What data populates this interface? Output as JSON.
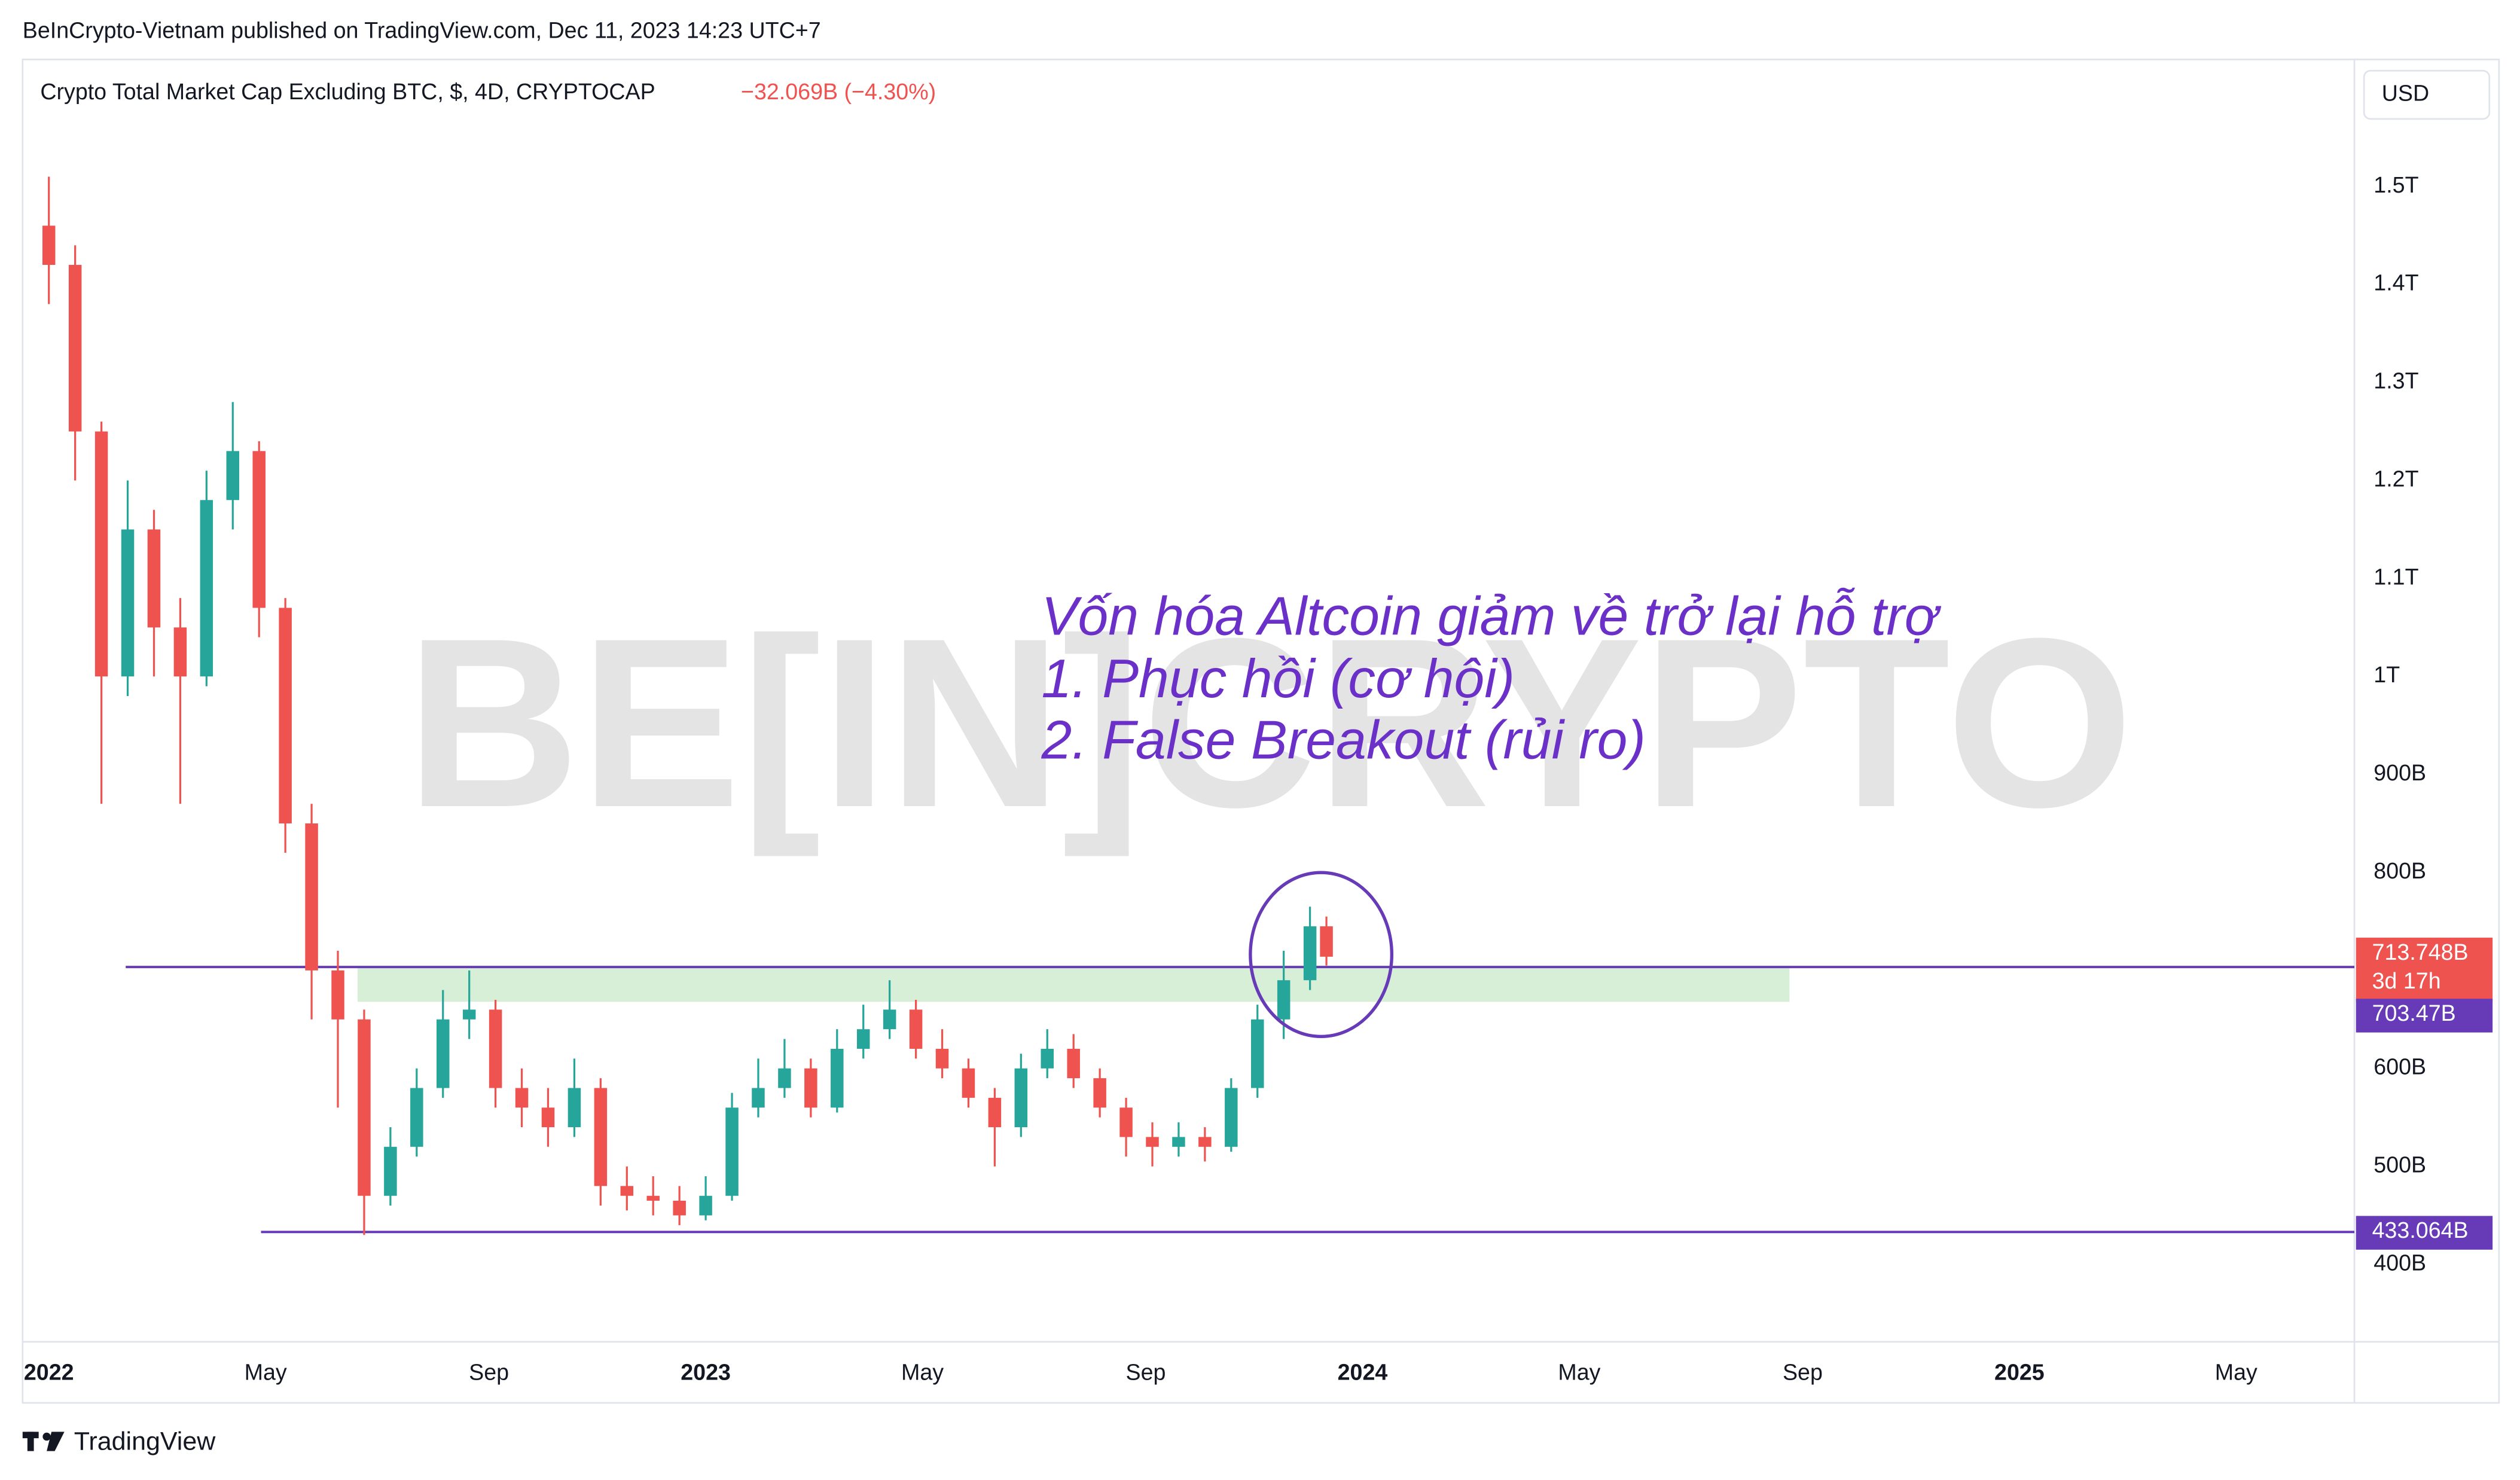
{
  "header": {
    "publisher": "BeInCrypto-Vietnam published on TradingView.com, Dec 11, 2023 14:23 UTC+7",
    "brand": "TradingView"
  },
  "chart_data": {
    "type": "candlestick",
    "title": "Crypto Total Market Cap Excluding BTC, $, 4D, CRYPTOCAP",
    "change": "−32.069B (−4.30%)",
    "currency": "USD",
    "watermark": "BE[IN]CRYPTO",
    "annotation": [
      "Vốn hóa Altcoin giảm về trở lại hỗ trợ",
      "1. Phục hồi (cơ hội)",
      "2. False Breakout (rủi ro)"
    ],
    "up_color": "#26a69a",
    "down_color": "#ef5350",
    "line_color": "#673ab7",
    "xlim": [
      2021.96,
      2025.51
    ],
    "xticks": [
      {
        "value": 2022,
        "label": "2022"
      },
      {
        "value": 2022.33,
        "label": "May"
      },
      {
        "value": 2022.67,
        "label": "Sep"
      },
      {
        "value": 2023,
        "label": "2023"
      },
      {
        "value": 2023.33,
        "label": "May"
      },
      {
        "value": 2023.67,
        "label": "Sep"
      },
      {
        "value": 2024,
        "label": "2024"
      },
      {
        "value": 2024.33,
        "label": "May"
      },
      {
        "value": 2024.67,
        "label": "Sep"
      },
      {
        "value": 2025,
        "label": "2025"
      },
      {
        "value": 2025.33,
        "label": "May"
      }
    ],
    "ylim": [
      321,
      1628
    ],
    "yticks": [
      {
        "value": 400,
        "label": "400B"
      },
      {
        "value": 500,
        "label": "500B"
      },
      {
        "value": 600,
        "label": "600B"
      },
      {
        "value": 800,
        "label": "800B"
      },
      {
        "value": 900,
        "label": "900B"
      },
      {
        "value": 1000,
        "label": "1T"
      },
      {
        "value": 1100,
        "label": "1.1T"
      },
      {
        "value": 1200,
        "label": "1.2T"
      },
      {
        "value": 1300,
        "label": "1.3T"
      },
      {
        "value": 1400,
        "label": "1.4T"
      },
      {
        "value": 1500,
        "label": "1.5T"
      }
    ],
    "x": [
      2022.0,
      2022.04,
      2022.08,
      2022.12,
      2022.16,
      2022.2,
      2022.24,
      2022.28,
      2022.32,
      2022.36,
      2022.4,
      2022.44,
      2022.48,
      2022.52,
      2022.56,
      2022.6,
      2022.64,
      2022.68,
      2022.72,
      2022.76,
      2022.8,
      2022.84,
      2022.88,
      2022.92,
      2022.96,
      2023.0,
      2023.04,
      2023.08,
      2023.12,
      2023.16,
      2023.2,
      2023.24,
      2023.28,
      2023.32,
      2023.36,
      2023.4,
      2023.44,
      2023.48,
      2023.52,
      2023.56,
      2023.6,
      2023.64,
      2023.68,
      2023.72,
      2023.76,
      2023.8,
      2023.84,
      2023.88,
      2023.92,
      2023.945
    ],
    "open": [
      1460,
      1420,
      1250,
      1000,
      1150,
      1050,
      1000,
      1180,
      1230,
      1070,
      850,
      700,
      650,
      470,
      520,
      580,
      650,
      660,
      580,
      560,
      540,
      580,
      480,
      470,
      465,
      450,
      470,
      560,
      580,
      600,
      560,
      620,
      640,
      660,
      620,
      600,
      570,
      540,
      600,
      620,
      590,
      560,
      530,
      520,
      530,
      520,
      580,
      650,
      690,
      745
    ],
    "high": [
      1510,
      1440,
      1260,
      1200,
      1170,
      1080,
      1210,
      1280,
      1240,
      1080,
      870,
      720,
      660,
      540,
      600,
      680,
      700,
      670,
      600,
      580,
      610,
      590,
      500,
      490,
      480,
      490,
      575,
      610,
      630,
      610,
      640,
      665,
      690,
      670,
      640,
      610,
      580,
      615,
      640,
      635,
      600,
      570,
      545,
      545,
      540,
      590,
      665,
      720,
      765,
      755
    ],
    "low": [
      1380,
      1200,
      870,
      980,
      1000,
      870,
      990,
      1150,
      1040,
      820,
      650,
      560,
      430,
      460,
      510,
      570,
      630,
      560,
      540,
      520,
      530,
      460,
      455,
      450,
      440,
      445,
      465,
      550,
      570,
      550,
      555,
      610,
      630,
      610,
      590,
      560,
      500,
      530,
      590,
      580,
      550,
      510,
      500,
      510,
      505,
      515,
      570,
      630,
      680,
      705
    ],
    "close": [
      1420,
      1250,
      1000,
      1150,
      1050,
      1000,
      1180,
      1230,
      1070,
      850,
      700,
      650,
      470,
      520,
      580,
      650,
      660,
      580,
      560,
      540,
      580,
      480,
      470,
      465,
      450,
      470,
      560,
      580,
      600,
      560,
      620,
      640,
      660,
      620,
      600,
      570,
      540,
      600,
      620,
      590,
      560,
      530,
      520,
      530,
      520,
      580,
      650,
      690,
      745,
      714
    ],
    "last_price": {
      "value": 713.748,
      "label": "713.748B",
      "countdown": "3d 17h"
    },
    "levels": [
      {
        "value": 703.47,
        "label": "703.47B",
        "from": 2022.117
      },
      {
        "value": 433.064,
        "label": "433.064B",
        "from": 2022.323
      }
    ],
    "support_zone": {
      "ylim": [
        668,
        703.47
      ],
      "xlim": [
        2022.47,
        2024.65
      ],
      "color": "#d6efd6"
    }
  }
}
